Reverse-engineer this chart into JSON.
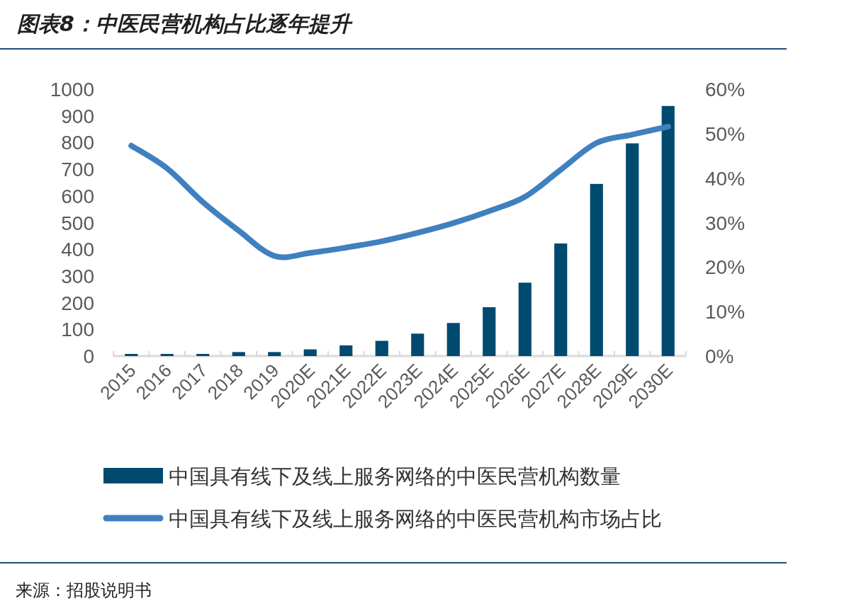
{
  "chart_data": {
    "type": "bar",
    "title": "图表8：中医民营机构占比逐年提升",
    "categories": [
      "2015",
      "2016",
      "2017",
      "2018",
      "2019",
      "2020E",
      "2021E",
      "2022E",
      "2023E",
      "2024E",
      "2025E",
      "2026E",
      "2027E",
      "2028E",
      "2029E",
      "2030E"
    ],
    "series": [
      {
        "name": "中国具有线下及线上服务网络的中医民营机构数量",
        "color": "#004a70",
        "values": [
          8,
          8,
          8,
          15,
          15,
          25,
          40,
          57,
          84,
          124,
          183,
          275,
          422,
          645,
          797,
          937
        ]
      },
      {
        "name": "中国具有线下及线上服务网络的中医民营机构市场占比",
        "type": "line",
        "axis": "y2",
        "color": "#4080bf",
        "values": [
          47.3,
          42.2,
          34.6,
          28.2,
          22.5,
          23.2,
          24.4,
          25.8,
          27.7,
          29.9,
          32.6,
          35.8,
          41.9,
          47.9,
          49.8,
          51.6
        ]
      }
    ],
    "ylim": [
      0,
      1000
    ],
    "yticks": [
      0,
      100,
      200,
      300,
      400,
      500,
      600,
      700,
      800,
      900,
      1000
    ],
    "y2lim": [
      0,
      60
    ],
    "y2ticks": [
      {
        "value": 0,
        "label": "0%"
      },
      {
        "value": 10,
        "label": "10%"
      },
      {
        "value": 20,
        "label": "20%"
      },
      {
        "value": 30,
        "label": "30%"
      },
      {
        "value": 40,
        "label": "40%"
      },
      {
        "value": 50,
        "label": "50%"
      },
      {
        "value": 60,
        "label": "60%"
      }
    ],
    "legend": "bottom",
    "grid": false,
    "annotations": [
      "来源：招股说明书"
    ]
  }
}
